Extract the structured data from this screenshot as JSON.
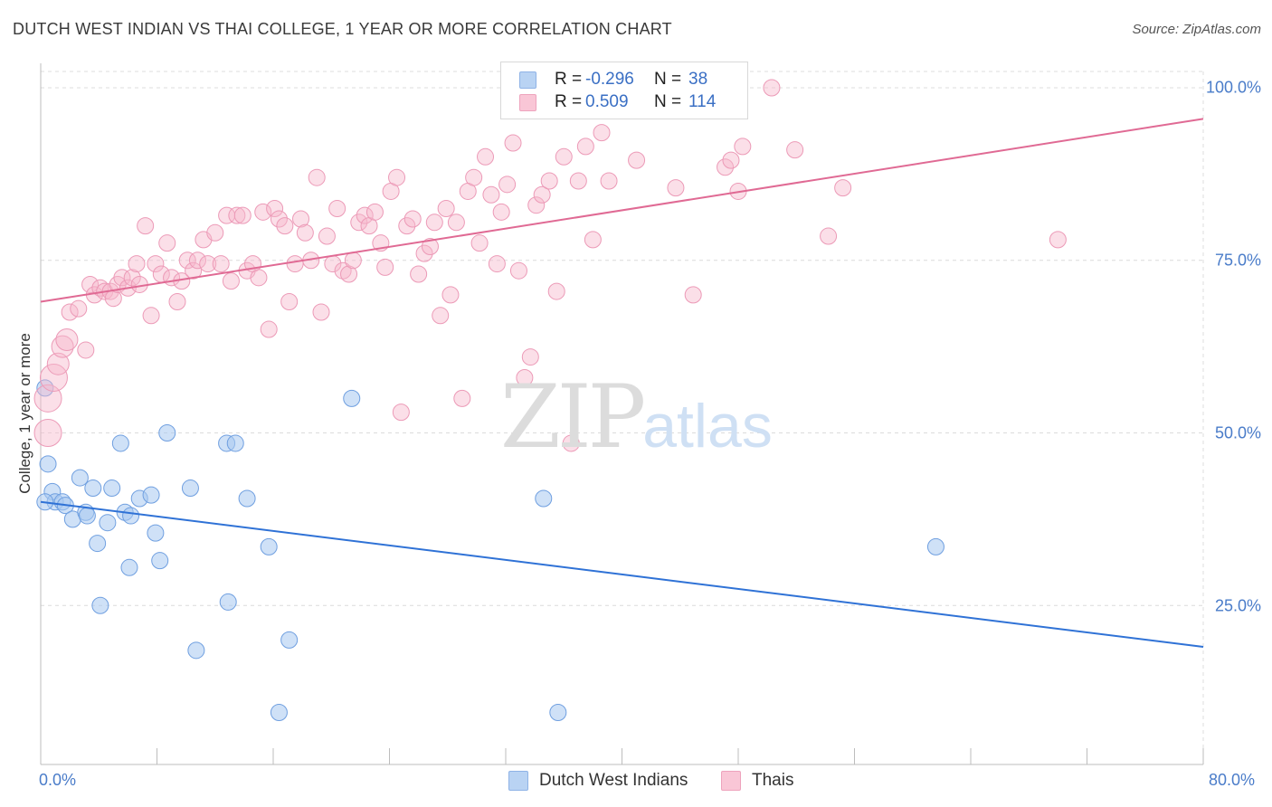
{
  "title": "DUTCH WEST INDIAN VS THAI COLLEGE, 1 YEAR OR MORE CORRELATION CHART",
  "source": "Source: ZipAtlas.com",
  "watermark": {
    "zip": "ZIP",
    "atlas": "atlas"
  },
  "colors": {
    "blue": "#2f72d6",
    "blue_fill": "#a8c8f0",
    "pink": "#e06a94",
    "pink_fill": "#f7b8cc",
    "tick_text": "#4a7cc9"
  },
  "legend": {
    "rows": [
      {
        "r_label": "R =",
        "r_value": "-0.296",
        "n_label": "N =",
        "n_value": "38",
        "series": "blue"
      },
      {
        "r_label": "R =",
        "r_value": "0.509",
        "n_label": "N =",
        "n_value": "114",
        "series": "pink"
      }
    ]
  },
  "bottom_legend": [
    {
      "label": "Dutch West Indians"
    },
    {
      "label": "Thais"
    }
  ],
  "chart_data": {
    "type": "scatter",
    "title": "DUTCH WEST INDIAN VS THAI COLLEGE, 1 YEAR OR MORE CORRELATION CHART",
    "xlabel": "",
    "ylabel": "College, 1 year or more",
    "xlim": [
      0,
      80
    ],
    "ylim": [
      0,
      103
    ],
    "x_tick_labels": [
      "0.0%",
      "80.0%"
    ],
    "y_ticks": [
      25,
      50,
      75,
      100
    ],
    "y_tick_labels": [
      "25.0%",
      "50.0%",
      "75.0%",
      "100.0%"
    ],
    "grid": true,
    "series": [
      {
        "name": "Dutch West Indians",
        "color": "#2f72d6",
        "r": -0.296,
        "n": 38,
        "trend": {
          "x0": 0,
          "y0": 40.0,
          "x1": 80,
          "y1": 19.0
        },
        "points": [
          [
            0.3,
            56.5
          ],
          [
            0.5,
            45.5
          ],
          [
            0.8,
            41.5
          ],
          [
            1.0,
            40.0
          ],
          [
            1.5,
            40.0
          ],
          [
            1.7,
            39.5
          ],
          [
            2.2,
            37.5
          ],
          [
            2.7,
            43.5
          ],
          [
            3.1,
            38.5
          ],
          [
            3.2,
            38.0
          ],
          [
            3.6,
            42.0
          ],
          [
            3.9,
            34.0
          ],
          [
            4.1,
            25.0
          ],
          [
            4.6,
            37.0
          ],
          [
            4.9,
            42.0
          ],
          [
            5.5,
            48.5
          ],
          [
            5.8,
            38.5
          ],
          [
            6.1,
            30.5
          ],
          [
            6.2,
            38.0
          ],
          [
            6.8,
            40.5
          ],
          [
            7.6,
            41.0
          ],
          [
            7.9,
            35.5
          ],
          [
            8.2,
            31.5
          ],
          [
            8.7,
            50.0
          ],
          [
            10.3,
            42.0
          ],
          [
            10.7,
            18.5
          ],
          [
            12.8,
            48.5
          ],
          [
            12.9,
            25.5
          ],
          [
            13.4,
            48.5
          ],
          [
            14.2,
            40.5
          ],
          [
            15.7,
            33.5
          ],
          [
            16.4,
            9.5
          ],
          [
            17.1,
            20.0
          ],
          [
            21.4,
            55.0
          ],
          [
            34.6,
            40.5
          ],
          [
            35.6,
            9.5
          ],
          [
            61.6,
            33.5
          ],
          [
            0.3,
            40.0
          ]
        ]
      },
      {
        "name": "Thais",
        "color": "#e06a94",
        "r": 0.509,
        "n": 114,
        "trend": {
          "x0": 0,
          "y0": 69.0,
          "x1": 80,
          "y1": 95.5
        },
        "points": [
          [
            0.5,
            55.0
          ],
          [
            0.5,
            50.0
          ],
          [
            0.9,
            58.0
          ],
          [
            1.2,
            60.0
          ],
          [
            1.5,
            62.5
          ],
          [
            1.8,
            63.5
          ],
          [
            2.0,
            67.5
          ],
          [
            2.6,
            68.0
          ],
          [
            3.1,
            62.0
          ],
          [
            3.4,
            71.5
          ],
          [
            3.7,
            70.0
          ],
          [
            4.1,
            71.0
          ],
          [
            4.4,
            70.5
          ],
          [
            4.8,
            70.5
          ],
          [
            5.0,
            69.5
          ],
          [
            5.3,
            71.5
          ],
          [
            5.6,
            72.5
          ],
          [
            6.0,
            71.0
          ],
          [
            6.3,
            72.5
          ],
          [
            6.6,
            74.5
          ],
          [
            6.8,
            71.5
          ],
          [
            7.2,
            80.0
          ],
          [
            7.6,
            67.0
          ],
          [
            7.9,
            74.5
          ],
          [
            8.3,
            73.0
          ],
          [
            8.7,
            77.5
          ],
          [
            9.0,
            72.5
          ],
          [
            9.4,
            69.0
          ],
          [
            9.7,
            72.0
          ],
          [
            10.1,
            75.0
          ],
          [
            10.5,
            73.5
          ],
          [
            10.8,
            75.0
          ],
          [
            11.2,
            78.0
          ],
          [
            11.5,
            74.5
          ],
          [
            12.0,
            79.0
          ],
          [
            12.4,
            74.5
          ],
          [
            12.8,
            81.5
          ],
          [
            13.1,
            72.0
          ],
          [
            13.5,
            81.5
          ],
          [
            13.9,
            81.5
          ],
          [
            14.2,
            73.5
          ],
          [
            14.6,
            74.5
          ],
          [
            15.0,
            72.5
          ],
          [
            15.3,
            82.0
          ],
          [
            15.7,
            65.0
          ],
          [
            16.1,
            82.5
          ],
          [
            16.4,
            81.0
          ],
          [
            16.8,
            80.0
          ],
          [
            17.1,
            69.0
          ],
          [
            17.5,
            74.5
          ],
          [
            17.9,
            81.0
          ],
          [
            18.2,
            79.0
          ],
          [
            18.6,
            75.0
          ],
          [
            19.0,
            87.0
          ],
          [
            19.3,
            67.5
          ],
          [
            19.7,
            78.5
          ],
          [
            20.1,
            74.5
          ],
          [
            20.4,
            82.5
          ],
          [
            20.8,
            73.5
          ],
          [
            21.2,
            73.0
          ],
          [
            21.5,
            75.0
          ],
          [
            21.9,
            80.5
          ],
          [
            22.3,
            81.5
          ],
          [
            22.6,
            80.0
          ],
          [
            23.0,
            82.0
          ],
          [
            23.4,
            77.5
          ],
          [
            23.7,
            74.0
          ],
          [
            24.1,
            85.0
          ],
          [
            24.5,
            87.0
          ],
          [
            24.8,
            53.0
          ],
          [
            25.2,
            80.0
          ],
          [
            25.6,
            81.0
          ],
          [
            26.0,
            73.0
          ],
          [
            26.4,
            76.0
          ],
          [
            26.8,
            77.0
          ],
          [
            27.1,
            80.5
          ],
          [
            27.5,
            67.0
          ],
          [
            27.9,
            82.5
          ],
          [
            28.2,
            70.0
          ],
          [
            28.6,
            80.5
          ],
          [
            29.0,
            55.0
          ],
          [
            29.4,
            85.0
          ],
          [
            29.8,
            87.0
          ],
          [
            30.2,
            77.5
          ],
          [
            30.6,
            90.0
          ],
          [
            31.0,
            84.5
          ],
          [
            31.4,
            74.5
          ],
          [
            31.7,
            82.0
          ],
          [
            32.1,
            86.0
          ],
          [
            32.5,
            92.0
          ],
          [
            32.9,
            73.5
          ],
          [
            33.3,
            58.0
          ],
          [
            33.7,
            61.0
          ],
          [
            34.1,
            83.0
          ],
          [
            34.5,
            84.5
          ],
          [
            35.0,
            86.5
          ],
          [
            35.5,
            70.5
          ],
          [
            36.0,
            90.0
          ],
          [
            36.5,
            48.5
          ],
          [
            37.0,
            86.5
          ],
          [
            37.5,
            91.5
          ],
          [
            38.0,
            78.0
          ],
          [
            38.6,
            93.5
          ],
          [
            39.1,
            86.5
          ],
          [
            41.0,
            89.5
          ],
          [
            43.7,
            85.5
          ],
          [
            44.9,
            70.0
          ],
          [
            47.1,
            88.5
          ],
          [
            47.5,
            89.5
          ],
          [
            48.0,
            85.0
          ],
          [
            48.3,
            91.5
          ],
          [
            50.3,
            100.0
          ],
          [
            51.9,
            91.0
          ],
          [
            54.2,
            78.5
          ],
          [
            55.2,
            85.5
          ],
          [
            70.0,
            78.0
          ]
        ]
      }
    ]
  }
}
